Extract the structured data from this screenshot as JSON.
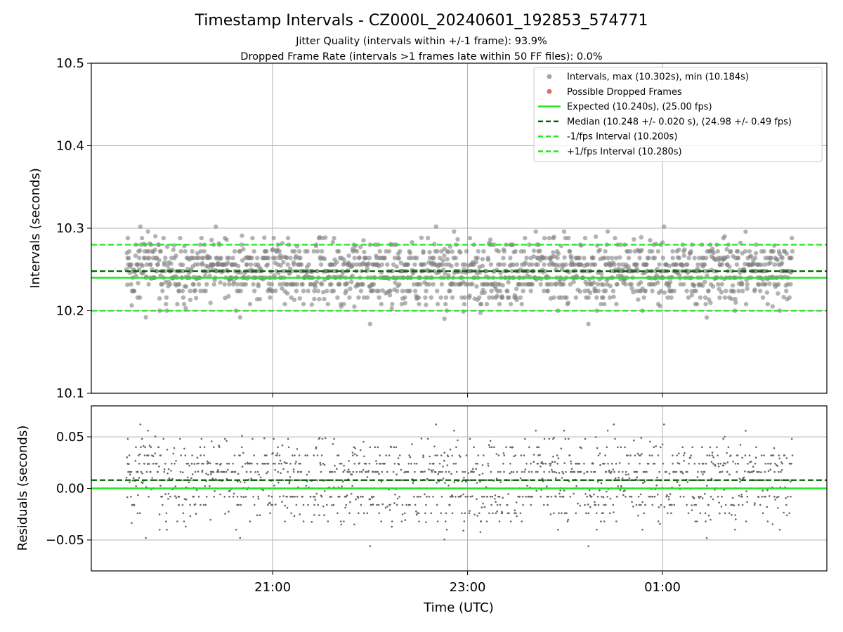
{
  "title": "Timestamp Intervals - CZ000L_20240601_192853_574771",
  "subtitle_lines": [
    "Jitter Quality (intervals within +/-1 frame): 93.9%",
    "Dropped Frame Rate (intervals >1 frames late within 50 FF files): 0.0%"
  ],
  "colors": {
    "points": "#808080",
    "dropped": "#ee3333",
    "expected": "#1ee61e",
    "median": "#006400",
    "fps_interval": "#1ee61e",
    "grid": "#b0b0b0"
  },
  "chart_data": [
    {
      "type": "scatter",
      "name": "top",
      "ylabel": "Intervals (seconds)",
      "ylim": [
        10.1,
        10.5
      ],
      "y_ticks": [
        "10.1",
        "10.2",
        "10.3",
        "10.4",
        "10.5"
      ],
      "x_ticks": [],
      "grid": true,
      "legend_position": "top-right",
      "legend": [
        {
          "label": "Intervals, max (10.302s), min (10.184s)",
          "kind": "dot",
          "color": "#a6a6a6"
        },
        {
          "label": "Possible Dropped Frames",
          "kind": "dot",
          "color": "#ee6666"
        },
        {
          "label": "Expected (10.240s), (25.00 fps)",
          "kind": "solid",
          "color": "#1ee61e"
        },
        {
          "label": "Median (10.248 +/- 0.020 s), (24.98 +/- 0.49 fps)",
          "kind": "dashed",
          "color": "#006400"
        },
        {
          "label": "-1/fps Interval (10.200s)",
          "kind": "dashed",
          "color": "#1ee61e"
        },
        {
          "label": "+1/fps Interval (10.280s)",
          "kind": "dashed",
          "color": "#1ee61e"
        }
      ],
      "lines": [
        {
          "name": "expected",
          "y": 10.24
        },
        {
          "name": "median",
          "y": 10.248
        },
        {
          "name": "minus_fps",
          "y": 10.2
        },
        {
          "name": "plus_fps",
          "y": 10.28
        }
      ],
      "series_summary": {
        "name": "Intervals",
        "count_approx": 2000,
        "min": 10.184,
        "max": 10.302,
        "median": 10.248,
        "std": 0.02,
        "time_range": [
          "19:30",
          "02:20"
        ]
      }
    },
    {
      "type": "scatter",
      "name": "bottom",
      "xlabel": "Time (UTC)",
      "ylabel": "Residuals (seconds)",
      "ylim": [
        -0.08,
        0.08
      ],
      "y_ticks": [
        "−0.05",
        "0.00",
        "0.05"
      ],
      "x_ticks": [
        "21:00",
        "23:00",
        "01:00"
      ],
      "grid": true,
      "lines": [
        {
          "name": "zero",
          "y": 0.0
        },
        {
          "name": "median_residual",
          "y": 0.008
        }
      ],
      "series_summary": {
        "name": "Residuals",
        "min": -0.056,
        "max": 0.062,
        "median": 0.008
      }
    }
  ]
}
